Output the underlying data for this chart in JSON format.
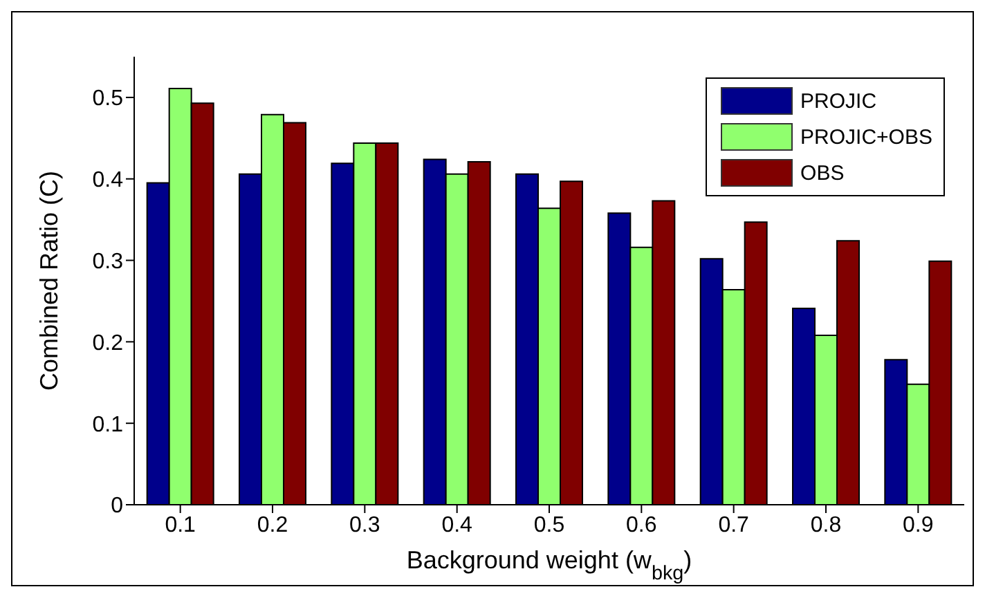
{
  "chart_data": {
    "type": "bar",
    "xlabel": "Background weight (w$_{bkg}$)",
    "ylabel": "Combined Ratio (C)",
    "categories": [
      "0.1",
      "0.2",
      "0.3",
      "0.4",
      "0.5",
      "0.6",
      "0.7",
      "0.8",
      "0.9"
    ],
    "series": [
      {
        "name": "PROJIC",
        "color": "#00008b",
        "values": [
          0.395,
          0.406,
          0.419,
          0.424,
          0.406,
          0.358,
          0.302,
          0.241,
          0.178
        ]
      },
      {
        "name": "PROJIC+OBS",
        "color": "#90ff6e",
        "values": [
          0.511,
          0.479,
          0.444,
          0.406,
          0.364,
          0.316,
          0.264,
          0.208,
          0.148
        ]
      },
      {
        "name": "OBS",
        "color": "#800000",
        "values": [
          0.493,
          0.469,
          0.444,
          0.421,
          0.397,
          0.373,
          0.347,
          0.324,
          0.299
        ]
      }
    ],
    "ylim": [
      0,
      0.55
    ],
    "yticks": [
      0,
      0.1,
      0.2,
      0.3,
      0.4,
      0.5
    ],
    "grid": false,
    "legend": "top right"
  }
}
